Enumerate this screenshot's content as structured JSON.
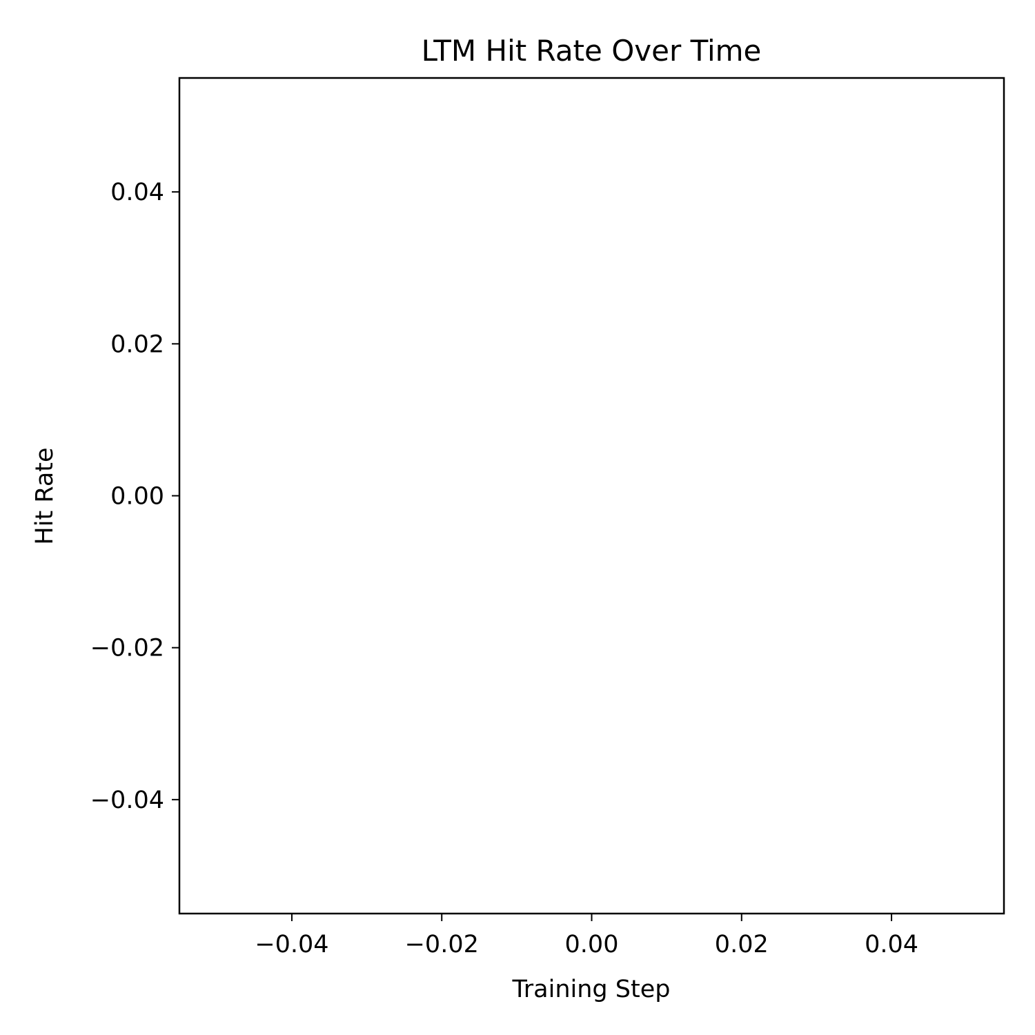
{
  "chart_data": {
    "type": "line",
    "title": "LTM Hit Rate Over Time",
    "xlabel": "Training Step",
    "ylabel": "Hit Rate",
    "xlim": [
      -0.055,
      0.055
    ],
    "ylim": [
      -0.055,
      0.055
    ],
    "x_ticks": [
      -0.04,
      -0.02,
      0.0,
      0.02,
      0.04
    ],
    "x_tick_labels": [
      "−0.04",
      "−0.02",
      "0.00",
      "0.02",
      "0.04"
    ],
    "y_ticks": [
      -0.04,
      -0.02,
      0.0,
      0.02,
      0.04
    ],
    "y_tick_labels": [
      "−0.04",
      "−0.02",
      "0.00",
      "0.02",
      "0.04"
    ],
    "grid": false,
    "series": [
      {
        "x": [],
        "y": []
      }
    ],
    "colors": {
      "axes": "#000000",
      "background": "#ffffff",
      "line": "#1f77b4"
    }
  }
}
